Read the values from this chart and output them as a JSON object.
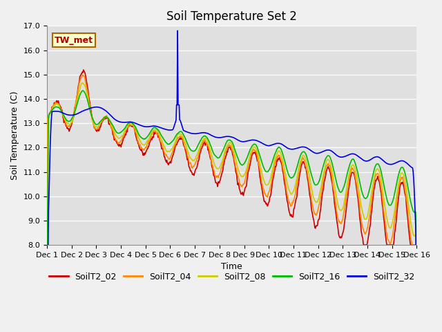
{
  "title": "Soil Temperature Set 2",
  "xlabel": "Time",
  "ylabel": "Soil Temperature (C)",
  "ylim": [
    8.0,
    17.0
  ],
  "yticks": [
    8.0,
    9.0,
    10.0,
    11.0,
    12.0,
    13.0,
    14.0,
    15.0,
    16.0,
    17.0
  ],
  "xtick_labels": [
    "Dec 1",
    "Dec 2",
    "Dec 3",
    "Dec 4",
    "Dec 5",
    "Dec 6",
    "Dec 7",
    "Dec 8",
    "Dec 9",
    "Dec 10",
    "Dec 11",
    "Dec 12",
    "Dec 13",
    "Dec 14",
    "Dec 15",
    "Dec 16"
  ],
  "annotation_text": "TW_met",
  "annotation_color": "#aa0000",
  "annotation_bg": "#ffffcc",
  "annotation_edge": "#aa6600",
  "series_colors": [
    "#cc0000",
    "#ff8800",
    "#cccc00",
    "#00bb00",
    "#0000dd"
  ],
  "series_labels": [
    "SoilT2_02",
    "SoilT2_04",
    "SoilT2_08",
    "SoilT2_16",
    "SoilT2_32"
  ],
  "line_width": 1.2,
  "title_fontsize": 12,
  "axis_fontsize": 9,
  "tick_fontsize": 8,
  "legend_fontsize": 9
}
